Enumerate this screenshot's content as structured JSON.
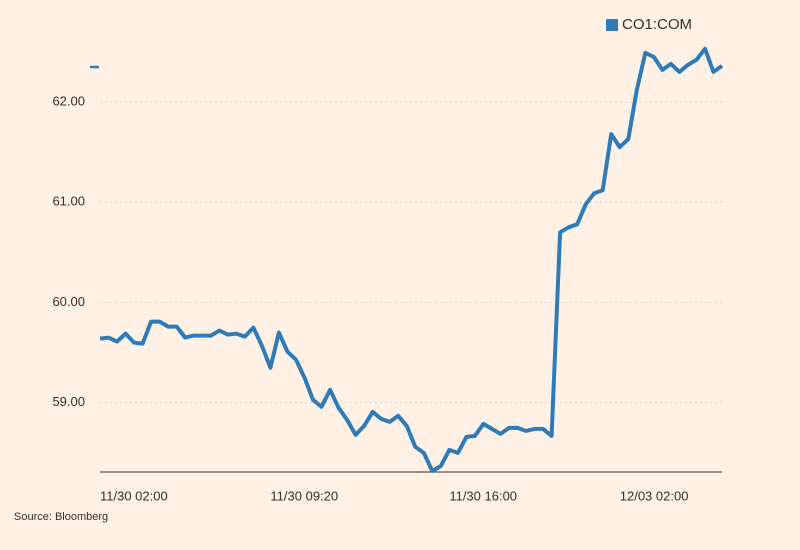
{
  "chart_data": {
    "type": "line",
    "source": "Source: Bloomberg",
    "legend": "top-right",
    "categories": [
      "11/30 02:00",
      null,
      null,
      null,
      null,
      null,
      null,
      null,
      null,
      null,
      null,
      null,
      null,
      null,
      null,
      null,
      null,
      null,
      null,
      null,
      "11/30 09:20",
      null,
      null,
      null,
      null,
      null,
      null,
      null,
      null,
      null,
      null,
      null,
      null,
      null,
      null,
      null,
      null,
      null,
      null,
      null,
      null,
      "11/30 16:00",
      null,
      null,
      null,
      null,
      null,
      null,
      null,
      null,
      null,
      null,
      null,
      null,
      null,
      null,
      null,
      null,
      null,
      null,
      null,
      "12/03 02:00",
      null,
      null,
      null,
      null,
      null,
      null,
      null,
      null,
      null,
      null,
      null,
      null
    ],
    "series": [
      {
        "name": "CO1:COM",
        "color": "#2f7bb8",
        "values": [
          59.64,
          59.65,
          59.61,
          59.69,
          59.6,
          59.59,
          59.81,
          59.81,
          59.76,
          59.76,
          59.65,
          59.67,
          59.67,
          59.67,
          59.72,
          59.68,
          59.69,
          59.66,
          59.75,
          59.57,
          59.35,
          59.7,
          59.51,
          59.43,
          59.25,
          59.03,
          58.96,
          59.13,
          58.95,
          58.83,
          58.68,
          58.77,
          58.91,
          58.84,
          58.81,
          58.87,
          58.77,
          58.56,
          58.5,
          58.32,
          58.37,
          58.53,
          58.5,
          58.66,
          58.67,
          58.79,
          58.74,
          58.69,
          58.75,
          58.75,
          58.72,
          58.74,
          58.74,
          58.67,
          60.7,
          60.75,
          60.78,
          60.98,
          61.09,
          61.12,
          61.68,
          61.55,
          61.63,
          62.12,
          62.49,
          62.45,
          62.32,
          62.38,
          62.3,
          62.37,
          62.42,
          62.53,
          62.3,
          62.36
        ]
      }
    ],
    "ylim": [
      58.3,
      62.7
    ],
    "yticks": [
      {
        "value": 59,
        "label": "59.00"
      },
      {
        "value": 60,
        "label": "60.00"
      },
      {
        "value": 61,
        "label": "61.00"
      },
      {
        "value": 62,
        "label": "62.00"
      }
    ],
    "grid": true
  }
}
